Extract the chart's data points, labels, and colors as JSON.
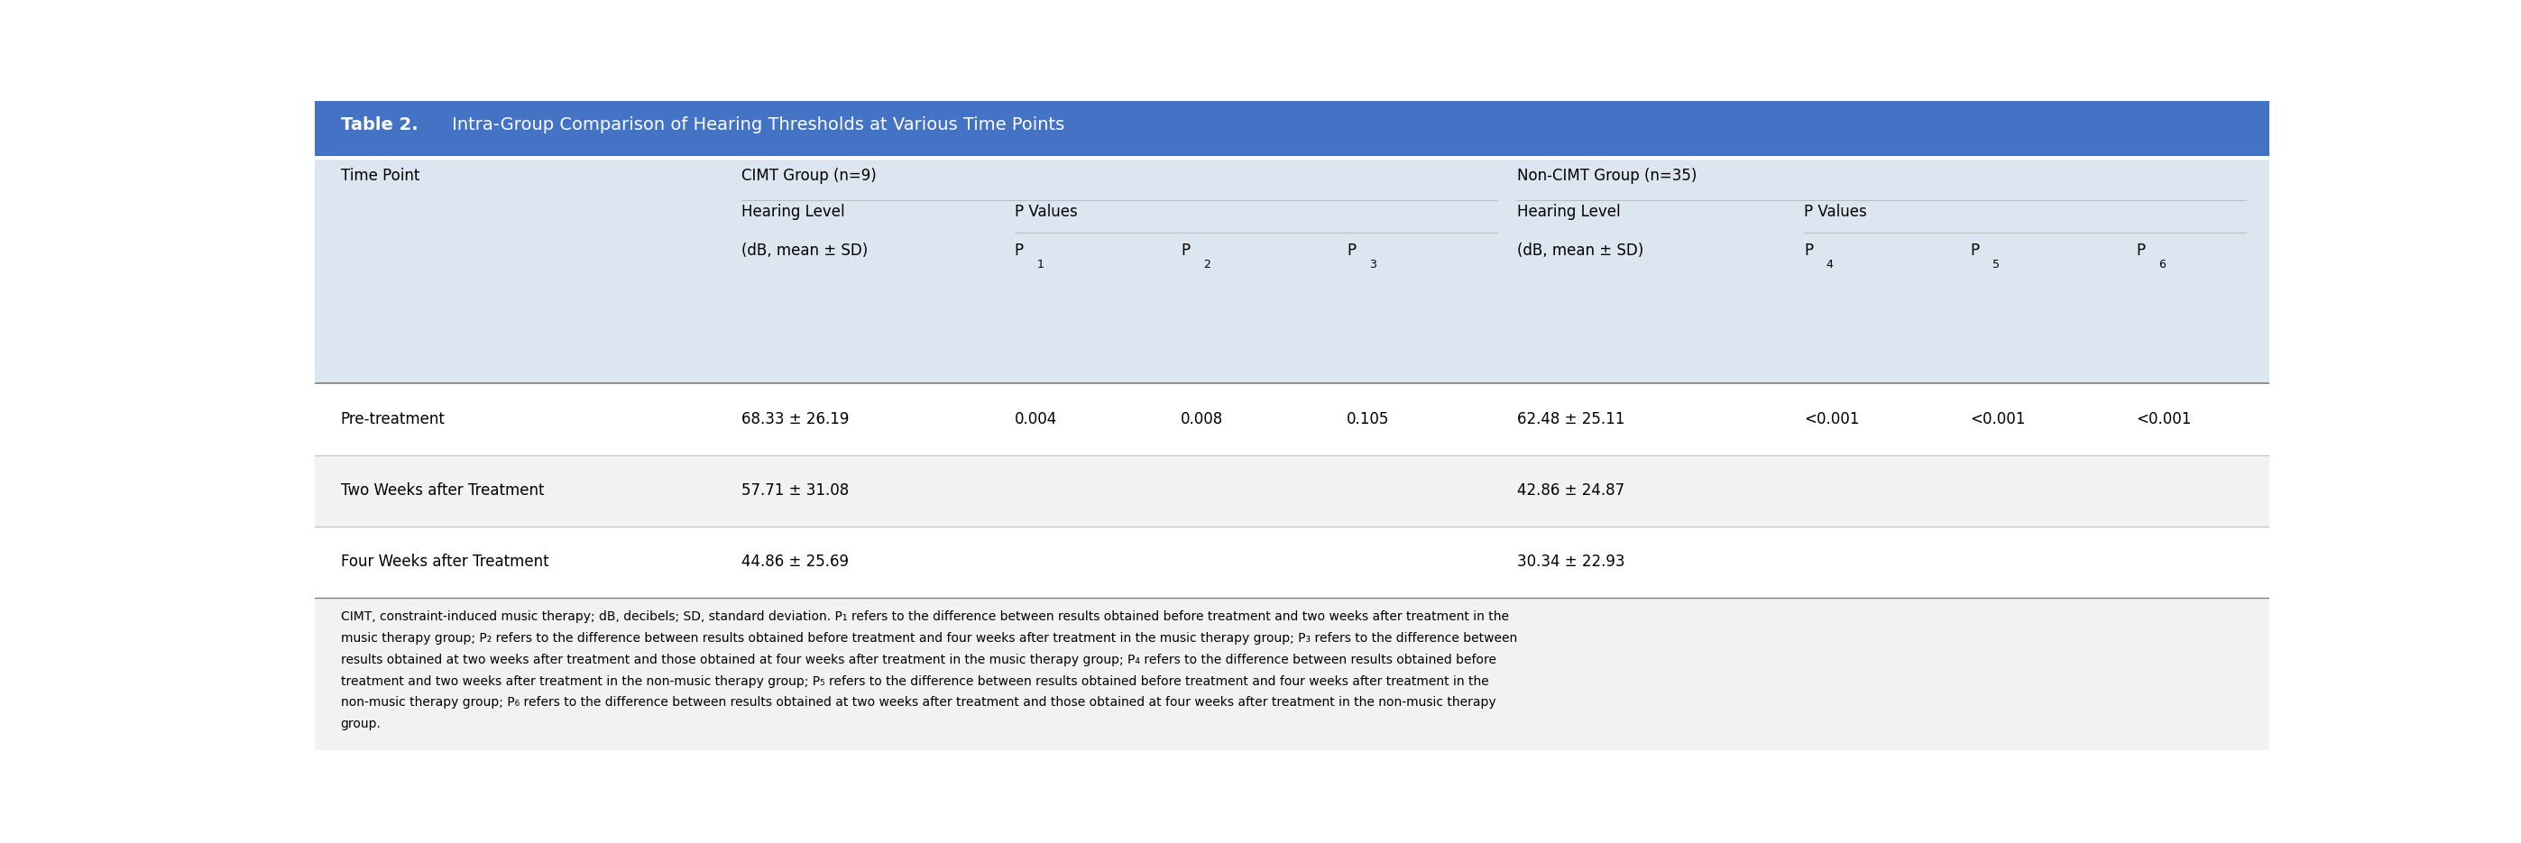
{
  "title_bold": "Table 2.",
  "title_rest": " Intra-Group Comparison of Hearing Thresholds at Various Time Points",
  "col_header1": "CIMT Group (n=9)",
  "col_header2": "Non-CIMT Group (n=35)",
  "col_timepoint": "Time Point",
  "p_labels_cimt": [
    "P",
    "1",
    "P",
    "2",
    "P",
    "3"
  ],
  "p_labels_noncimt": [
    "P",
    "4",
    "P",
    "5",
    "P",
    "6"
  ],
  "rows": [
    {
      "timepoint": "Pre-treatment",
      "cimt_hl": "68.33 ± 26.19",
      "cimt_p1": "0.004",
      "cimt_p2": "0.008",
      "cimt_p3": "0.105",
      "noncimt_hl": "62.48 ± 25.11",
      "noncimt_p4": "<0.001",
      "noncimt_p5": "<0.001",
      "noncimt_p6": "<0.001"
    },
    {
      "timepoint": "Two Weeks after Treatment",
      "cimt_hl": "57.71 ± 31.08",
      "cimt_p1": "",
      "cimt_p2": "",
      "cimt_p3": "",
      "noncimt_hl": "42.86 ± 24.87",
      "noncimt_p4": "",
      "noncimt_p5": "",
      "noncimt_p6": ""
    },
    {
      "timepoint": "Four Weeks after Treatment",
      "cimt_hl": "44.86 ± 25.69",
      "cimt_p1": "",
      "cimt_p2": "",
      "cimt_p3": "",
      "noncimt_hl": "30.34 ± 22.93",
      "noncimt_p4": "",
      "noncimt_p5": "",
      "noncimt_p6": ""
    }
  ],
  "footnote_lines": [
    "CIMT, constraint-induced music therapy; dB, decibels; SD, standard deviation. P₁ refers to the difference between results obtained before treatment and two weeks after treatment in the",
    "music therapy group; P₂ refers to the difference between results obtained before treatment and four weeks after treatment in the music therapy group; P₃ refers to the difference between",
    "results obtained at two weeks after treatment and those obtained at four weeks after treatment in the music therapy group; P₄ refers to the difference between results obtained before",
    "treatment and two weeks after treatment in the non-music therapy group; P₅ refers to the difference between results obtained before treatment and four weeks after treatment in the",
    "non-music therapy group; P₆ refers to the difference between results obtained at two weeks after treatment and those obtained at four weeks after treatment in the non-music therapy",
    "group."
  ],
  "blue_band_color": "#4472C4",
  "light_blue_bg": "#DCE6F1",
  "header_bg": "#E9EFF7",
  "white_bg": "#FFFFFF",
  "light_gray_bg": "#F2F2F2",
  "text_color": "#000000",
  "line_color_dark": "#7F7F7F",
  "line_color_light": "#BFBFBF",
  "font_size_title": 14,
  "font_size_header": 12,
  "font_size_cell": 12,
  "font_size_footnote": 10,
  "col_x": {
    "timepoint": 0.013,
    "cimt_hl": 0.218,
    "p1": 0.358,
    "p2": 0.443,
    "p3": 0.528,
    "noncimt_hl": 0.615,
    "p4": 0.762,
    "p5": 0.847,
    "p6": 0.932
  }
}
